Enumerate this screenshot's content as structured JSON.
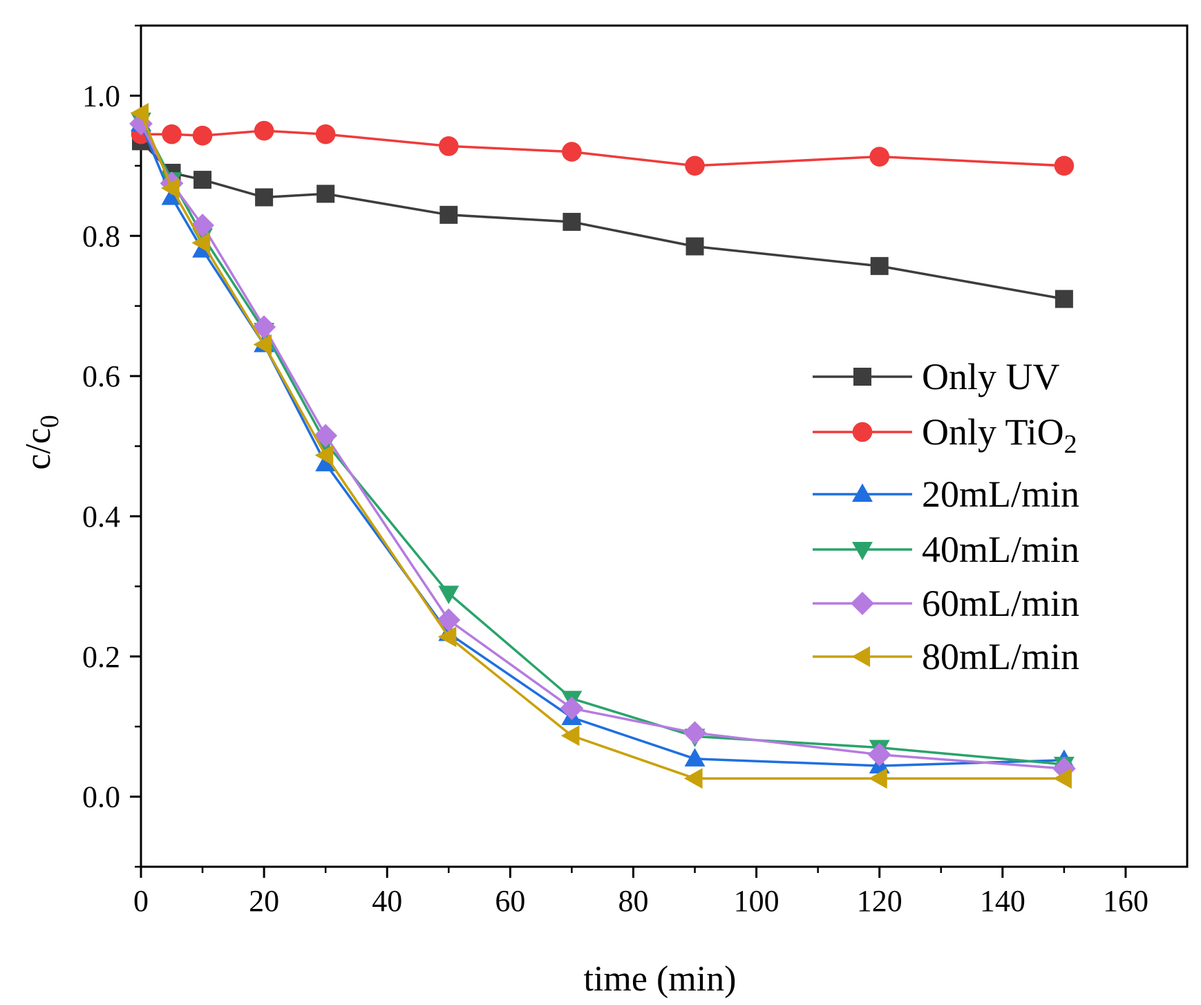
{
  "chart_data": {
    "type": "line",
    "title": "",
    "xlabel": "time (min)",
    "ylabel": {
      "main": "c/c",
      "sub": "0"
    },
    "xlim": [
      0,
      170
    ],
    "ylim": [
      -0.1,
      1.1
    ],
    "xticks": [
      0,
      20,
      40,
      60,
      80,
      100,
      120,
      140,
      160
    ],
    "xtick_labels": [
      "0",
      "20",
      "40",
      "60",
      "80",
      "100",
      "120",
      "140",
      "160"
    ],
    "yticks": [
      0.0,
      0.2,
      0.4,
      0.6,
      0.8,
      1.0
    ],
    "ytick_labels": [
      "0.0",
      "0.2",
      "0.4",
      "0.6",
      "0.8",
      "1.0"
    ],
    "grid": false,
    "legend_position": "right",
    "series": [
      {
        "name": "Only UV",
        "label_main": "Only UV",
        "label_sub": "",
        "color": "#3d3d3d",
        "marker": "square",
        "x": [
          0,
          5,
          10,
          20,
          30,
          50,
          70,
          90,
          120,
          150
        ],
        "y": [
          0.935,
          0.89,
          0.88,
          0.855,
          0.86,
          0.83,
          0.82,
          0.785,
          0.757,
          0.71
        ]
      },
      {
        "name": "Only TiO2",
        "label_main": "Only TiO",
        "label_sub": "2",
        "color": "#ef3b3b",
        "marker": "circle",
        "x": [
          0,
          5,
          10,
          20,
          30,
          50,
          70,
          90,
          120,
          150
        ],
        "y": [
          0.945,
          0.945,
          0.943,
          0.95,
          0.945,
          0.928,
          0.92,
          0.9,
          0.913,
          0.9
        ]
      },
      {
        "name": "20mL/min",
        "label_main": "20mL/min",
        "label_sub": "",
        "color": "#1f6fe0",
        "marker": "triangle-up",
        "x": [
          0,
          5,
          10,
          20,
          30,
          50,
          70,
          90,
          120,
          150
        ],
        "y": [
          0.96,
          0.855,
          0.78,
          0.645,
          0.475,
          0.233,
          0.113,
          0.054,
          0.044,
          0.052
        ]
      },
      {
        "name": "40mL/min",
        "label_main": "40mL/min",
        "label_sub": "",
        "color": "#2aa36b",
        "marker": "triangle-down",
        "x": [
          0,
          5,
          10,
          20,
          30,
          50,
          70,
          90,
          120,
          150
        ],
        "y": [
          0.965,
          0.88,
          0.8,
          0.665,
          0.505,
          0.29,
          0.14,
          0.086,
          0.07,
          0.046
        ]
      },
      {
        "name": "60mL/min",
        "label_main": "60mL/min",
        "label_sub": "",
        "color": "#b57be0",
        "marker": "diamond",
        "x": [
          0,
          5,
          10,
          20,
          30,
          50,
          70,
          90,
          120,
          150
        ],
        "y": [
          0.96,
          0.875,
          0.815,
          0.67,
          0.515,
          0.252,
          0.126,
          0.091,
          0.06,
          0.04
        ]
      },
      {
        "name": "80mL/min",
        "label_main": "80mL/min",
        "label_sub": "",
        "color": "#c9a10a",
        "marker": "triangle-left",
        "x": [
          0,
          5,
          10,
          20,
          30,
          50,
          70,
          90,
          120,
          150
        ],
        "y": [
          0.975,
          0.868,
          0.79,
          0.645,
          0.487,
          0.228,
          0.087,
          0.026,
          0.026,
          0.026
        ]
      }
    ]
  }
}
